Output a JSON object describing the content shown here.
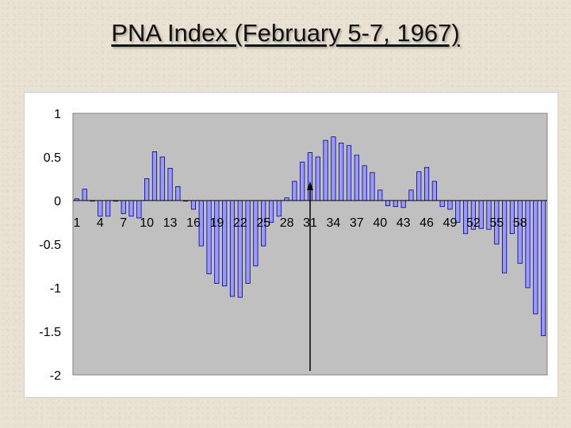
{
  "title": "PNA Index (February 5-7, 1967)",
  "chart_data": {
    "type": "bar",
    "title": "",
    "xlabel": "",
    "ylabel": "",
    "ylim": [
      -2,
      1
    ],
    "y_ticks": [
      "1",
      "0.5",
      "0",
      "-0.5",
      "-1",
      "-1.5",
      "-2"
    ],
    "x_tick_labels": [
      "1",
      "4",
      "7",
      "10",
      "13",
      "16",
      "19",
      "22",
      "25",
      "28",
      "31",
      "34",
      "37",
      "40",
      "43",
      "46",
      "49",
      "52",
      "55",
      "58"
    ],
    "grid": false,
    "legend": "none",
    "plot_area_color": "#c0c0c0",
    "bar_fill": "#9999ff",
    "bar_stroke": "#000080",
    "series": [
      {
        "values": [
          0.02,
          0.13,
          0,
          -0.18,
          -0.18,
          0,
          -0.15,
          -0.18,
          -0.2,
          0.25,
          0.56,
          0.5,
          0.37,
          0.16,
          0,
          -0.1,
          -0.52,
          -0.84,
          -0.95,
          -0.98,
          -1.1,
          -1.11,
          -0.95,
          -0.75,
          -0.52,
          -0.25,
          -0.18,
          0.03,
          0.22,
          0.44,
          0.55,
          0.5,
          0.69,
          0.73,
          0.66,
          0.63,
          0.52,
          0.4,
          0.32,
          0.12,
          -0.06,
          -0.07,
          -0.08,
          0.12,
          0.33,
          0.38,
          0.22,
          -0.07,
          -0.1,
          -0.25,
          -0.38,
          -0.33,
          -0.32,
          -0.33,
          -0.5,
          -0.83,
          -0.38,
          -0.72,
          -1.0,
          -1.3,
          -1.55
        ]
      }
    ],
    "annotation": {
      "type": "arrow",
      "target_index": 30
    }
  }
}
